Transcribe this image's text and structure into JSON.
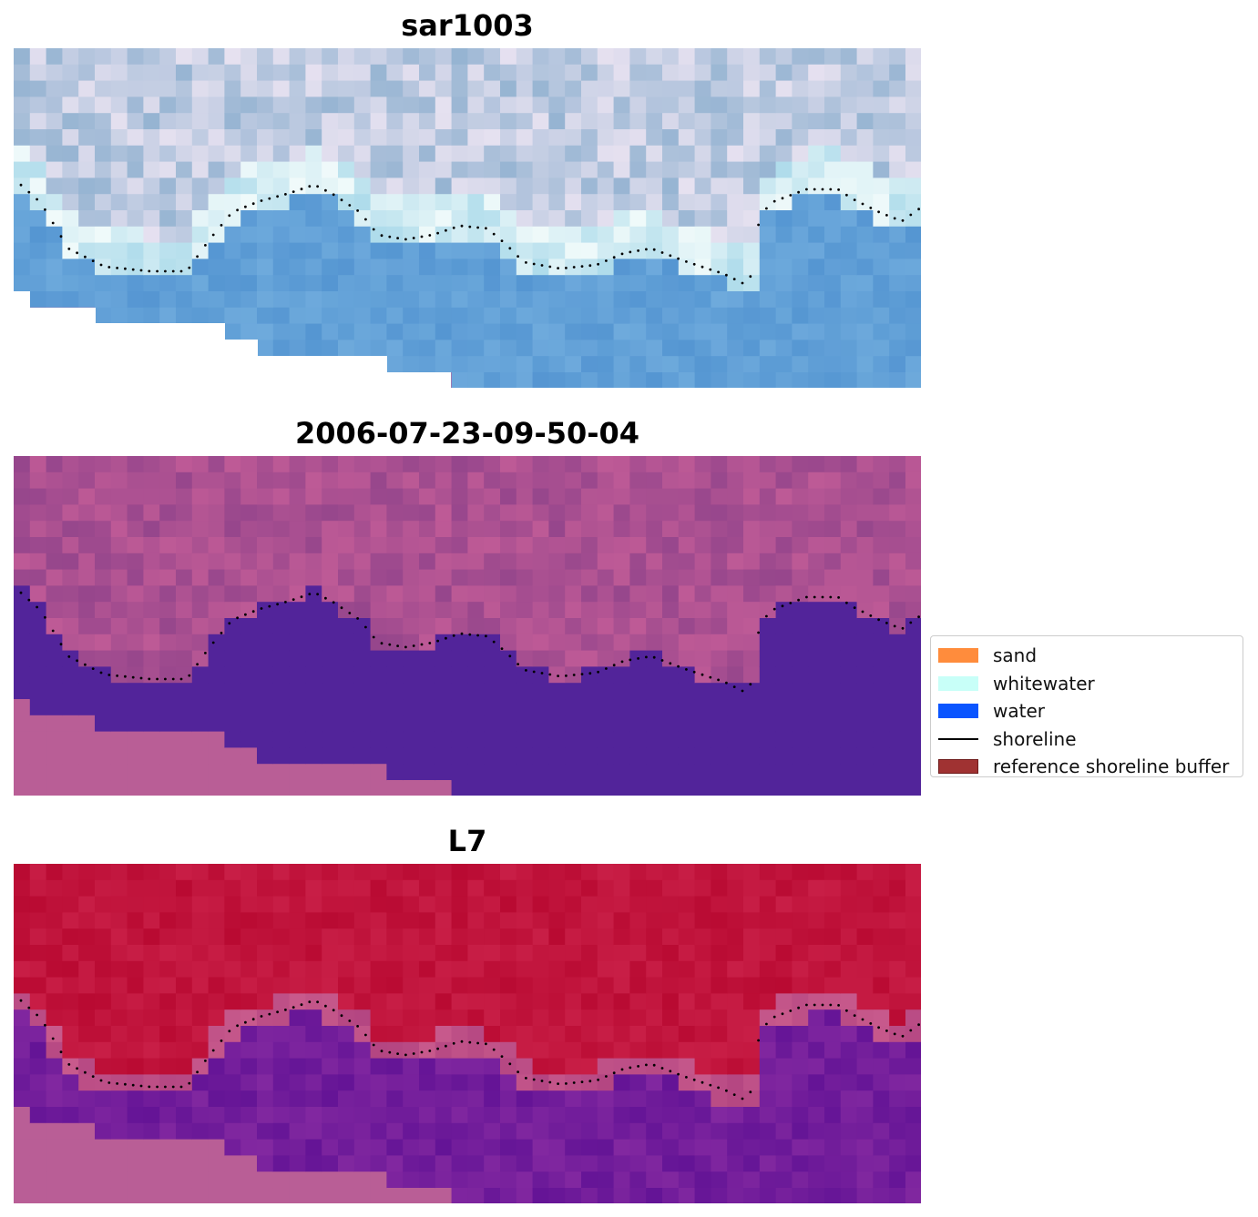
{
  "panels": [
    {
      "title": "sar1003",
      "style": "rgb"
    },
    {
      "title": "2006-07-23-09-50-04",
      "style": "class"
    },
    {
      "title": "L7",
      "style": "ndwi"
    }
  ],
  "legend": {
    "items": [
      {
        "label": "sand",
        "color": "#ff8c3c",
        "kind": "patch"
      },
      {
        "label": "whitewater",
        "color": "#c8fff8",
        "kind": "patch"
      },
      {
        "label": "water",
        "color": "#0a55ff",
        "kind": "patch"
      },
      {
        "label": "shoreline",
        "color": "#000000",
        "kind": "line"
      },
      {
        "label": "reference shoreline buffer",
        "color": "#a03232",
        "kind": "patch"
      }
    ]
  },
  "colors": {
    "water_class": "#52249a",
    "land_class": "#b85b94",
    "nodata": "#b95e96",
    "land_ndwi": "#c0103a",
    "water_ndwi": "#6a1a9a"
  }
}
